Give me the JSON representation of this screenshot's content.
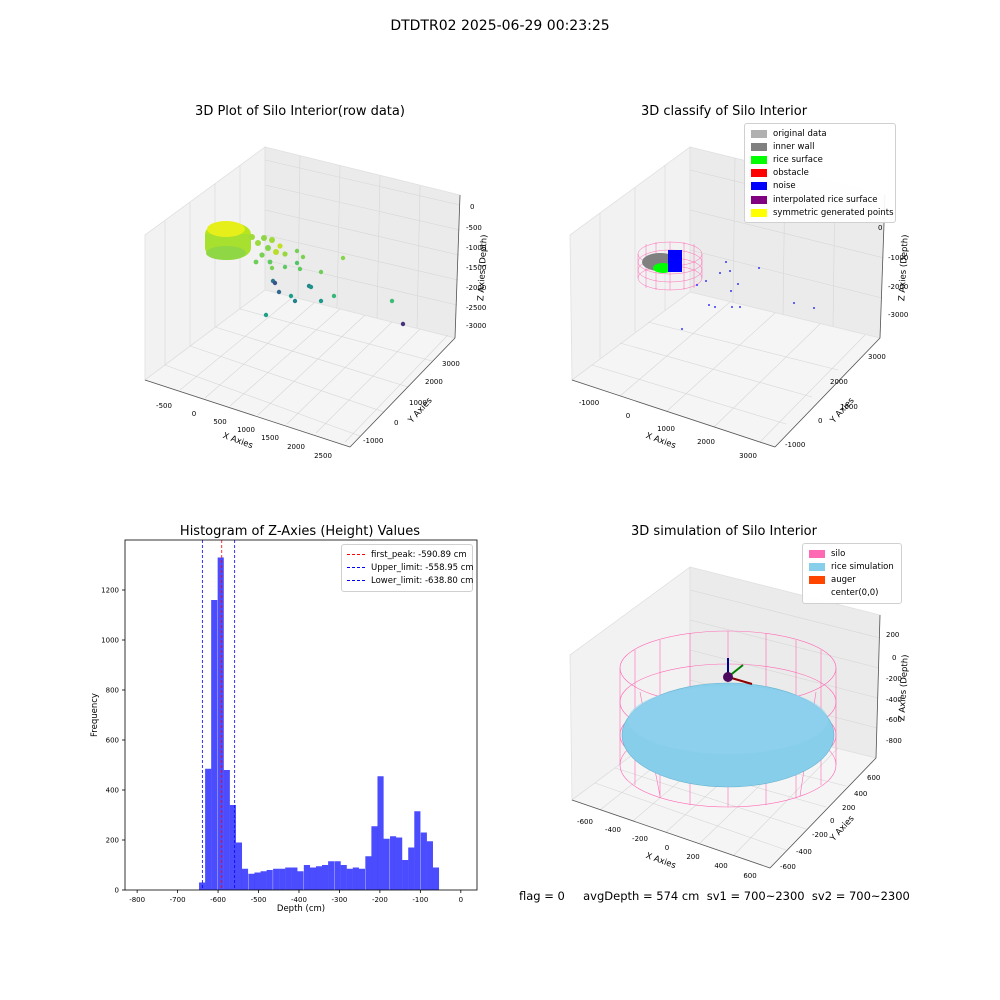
{
  "suptitle": "DTDTR02 2025-06-29 00:23:25",
  "footer": "flag = 0     avgDepth = 574 cm  sv1 = 700~2300  sv2 = 700~2300",
  "chart_data": [
    {
      "type": "scatter",
      "title": "3D Plot of Silo Interior(row data)",
      "xlabel": "X Axies",
      "ylabel": "Y Axies",
      "zlabel": "Z Axies (Depth)",
      "xticks": [
        "-500",
        "0",
        "500",
        "1000",
        "1500",
        "2000",
        "2500"
      ],
      "yticks": [
        "-1000",
        "0",
        "1000",
        "2000",
        "3000"
      ],
      "zticks": [
        "0",
        "-500",
        "-1000",
        "-1500",
        "-2000",
        "-2500",
        "-3000"
      ]
    },
    {
      "type": "scatter",
      "title": "3D classify of Silo Interior",
      "xlabel": "X Axies",
      "ylabel": "Y Axies",
      "zlabel": "Z Axies (Depth)",
      "xticks": [
        "-1000",
        "0",
        "1000",
        "2000",
        "3000"
      ],
      "yticks": [
        "-1000",
        "0",
        "1000",
        "2000",
        "3000"
      ],
      "zticks": [
        "0",
        "-1000",
        "-2000",
        "-3000"
      ],
      "legend": [
        {
          "label": "original data",
          "color": "#b0b0b0"
        },
        {
          "label": "inner wall",
          "color": "#808080"
        },
        {
          "label": "rice surface",
          "color": "#00ff00"
        },
        {
          "label": "obstacle",
          "color": "#ff0000"
        },
        {
          "label": "noise",
          "color": "#0000ff"
        },
        {
          "label": "interpolated rice surface",
          "color": "#800080"
        },
        {
          "label": "symmetric generated points",
          "color": "#ffff00"
        }
      ]
    },
    {
      "type": "bar",
      "title": "Histogram of Z-Axies (Height) Values",
      "xlabel": "Depth (cm)",
      "ylabel": "Frequency",
      "xlim": [
        -830,
        40
      ],
      "ylim": [
        0,
        1400
      ],
      "xticks": [
        -800,
        -700,
        -600,
        -500,
        -400,
        -300,
        -200,
        -100,
        0
      ],
      "yticks": [
        0,
        200,
        400,
        600,
        800,
        1000,
        1200
      ],
      "bar_color": "#0000ff",
      "bin_width": 15.2,
      "bin_starts": [
        -647,
        -632,
        -617,
        -601,
        -586,
        -571,
        -556,
        -541,
        -525,
        -510,
        -495,
        -480,
        -464,
        -449,
        -434,
        -419,
        -404,
        -388,
        -373,
        -358,
        -343,
        -328,
        -312,
        -297,
        -282,
        -267,
        -252,
        -236,
        -221,
        -206,
        -191,
        -175,
        -160,
        -145,
        -130,
        -115,
        -99,
        -84,
        -69,
        -54,
        -39,
        -23,
        -8
      ],
      "values": [
        30,
        485,
        1160,
        1330,
        480,
        340,
        190,
        85,
        65,
        70,
        75,
        80,
        85,
        85,
        90,
        90,
        75,
        100,
        90,
        95,
        100,
        115,
        115,
        100,
        85,
        90,
        85,
        135,
        255,
        455,
        205,
        215,
        210,
        120,
        170,
        315,
        230,
        195,
        90,
        0,
        0,
        0,
        0
      ],
      "vlines": [
        {
          "x": -590.89,
          "label": "first_peak: -590.89 cm",
          "color": "#ff0000"
        },
        {
          "x": -558.95,
          "label": "Upper_limit: -558.95 cm",
          "color": "#0000ff"
        },
        {
          "x": -638.8,
          "label": "Lower_limit: -638.80 cm",
          "color": "#0000ff"
        }
      ]
    },
    {
      "type": "scatter",
      "title": "3D simulation of Silo Interior",
      "xlabel": "X Axies",
      "ylabel": "Y Axies",
      "zlabel": "Z Axies (Depth)",
      "xticks": [
        "-600",
        "-400",
        "-200",
        "0",
        "200",
        "400",
        "600"
      ],
      "yticks": [
        "-600",
        "-400",
        "-200",
        "0",
        "200",
        "400",
        "600"
      ],
      "zticks": [
        "200",
        "0",
        "-200",
        "-400",
        "-600",
        "-800"
      ],
      "legend": [
        {
          "label": "silo",
          "color": "#ff69b4"
        },
        {
          "label": "rice simulation",
          "color": "#87ceeb"
        },
        {
          "label": "auger",
          "color": "#ff4500"
        },
        {
          "label": "center(0,0)",
          "color": ""
        }
      ]
    }
  ]
}
